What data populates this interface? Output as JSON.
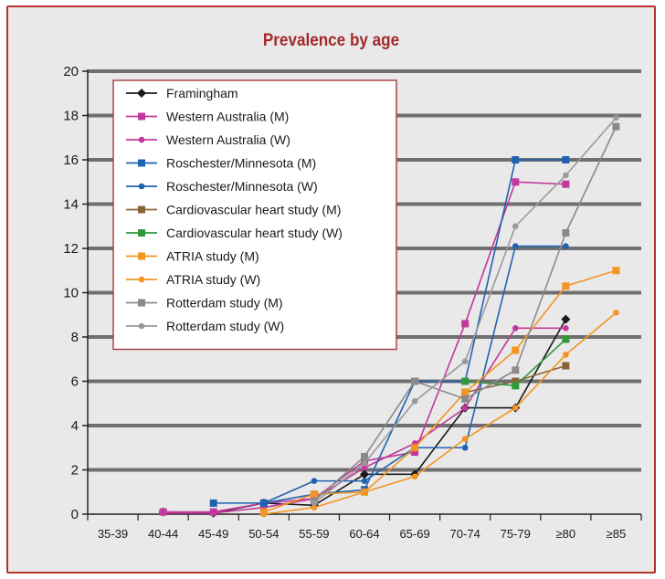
{
  "chart_data": {
    "type": "line",
    "title": "Prevalence by age",
    "xlabel": "",
    "ylabel": "",
    "ylim": [
      0,
      20
    ],
    "yticks": [
      "0",
      "2",
      "4",
      "6",
      "8",
      "10",
      "12",
      "14",
      "16",
      "18",
      "20"
    ],
    "categories": [
      "35-39",
      "40-44",
      "45-49",
      "50-54",
      "55-59",
      "60-64",
      "65-69",
      "70-74",
      "75-79",
      "≥80",
      "≥85"
    ],
    "grid": true,
    "legend_position": "top-left",
    "series": [
      {
        "name": "Framingham",
        "color": "#1a1a1a",
        "marker": "diamond",
        "values": [
          null,
          0.1,
          0.05,
          0.5,
          0.4,
          1.8,
          1.8,
          4.8,
          4.8,
          8.8,
          null
        ]
      },
      {
        "name": "Western Australia (M)",
        "color": "#c2389c",
        "marker": "square",
        "values": [
          null,
          0.1,
          0.1,
          0.5,
          0.7,
          2.4,
          2.8,
          8.6,
          15.0,
          14.9,
          null
        ]
      },
      {
        "name": "Western Australia (W)",
        "color": "#c2389c",
        "marker": "dot",
        "values": [
          null,
          0.05,
          0.05,
          0.3,
          0.7,
          2.1,
          3.2,
          4.8,
          8.4,
          8.4,
          null
        ]
      },
      {
        "name": "Roschester/Minnesota (M)",
        "color": "#1f63b0",
        "marker": "square",
        "values": [
          null,
          null,
          0.5,
          0.5,
          0.9,
          1.1,
          6.0,
          6.0,
          16.0,
          16.0,
          null
        ]
      },
      {
        "name": "Roschester/Minnesota (W)",
        "color": "#1f63b0",
        "marker": "dot",
        "values": [
          null,
          null,
          null,
          0.5,
          1.5,
          1.5,
          3.0,
          3.0,
          12.1,
          12.1,
          null
        ]
      },
      {
        "name": "Cardiovascular heart study (M)",
        "color": "#8a6437",
        "marker": "square",
        "values": [
          null,
          null,
          null,
          null,
          null,
          null,
          null,
          5.5,
          6.0,
          6.7,
          null
        ]
      },
      {
        "name": "Cardiovascular heart study (W)",
        "color": "#2f9a3c",
        "marker": "square",
        "values": [
          null,
          null,
          null,
          null,
          null,
          null,
          null,
          6.0,
          5.8,
          7.9,
          null
        ]
      },
      {
        "name": "ATRIA study (M)",
        "color": "#f39521",
        "marker": "square",
        "values": [
          null,
          null,
          null,
          0.1,
          0.9,
          1.0,
          3.0,
          5.5,
          7.4,
          10.3,
          11.0
        ]
      },
      {
        "name": "ATRIA study (W)",
        "color": "#f39521",
        "marker": "dot",
        "values": [
          null,
          null,
          null,
          0.0,
          0.3,
          1.0,
          1.7,
          3.4,
          4.8,
          7.2,
          9.1
        ]
      },
      {
        "name": "Rotterdam study (M)",
        "color": "#8a8a8a",
        "marker": "square",
        "values": [
          null,
          null,
          null,
          null,
          0.6,
          2.6,
          6.0,
          5.2,
          6.5,
          12.7,
          17.5
        ]
      },
      {
        "name": "Rotterdam study (W)",
        "color": "#9a9a9a",
        "marker": "dot",
        "values": [
          null,
          null,
          null,
          null,
          0.5,
          2.3,
          5.1,
          6.9,
          13.0,
          15.3,
          17.9
        ]
      }
    ]
  }
}
